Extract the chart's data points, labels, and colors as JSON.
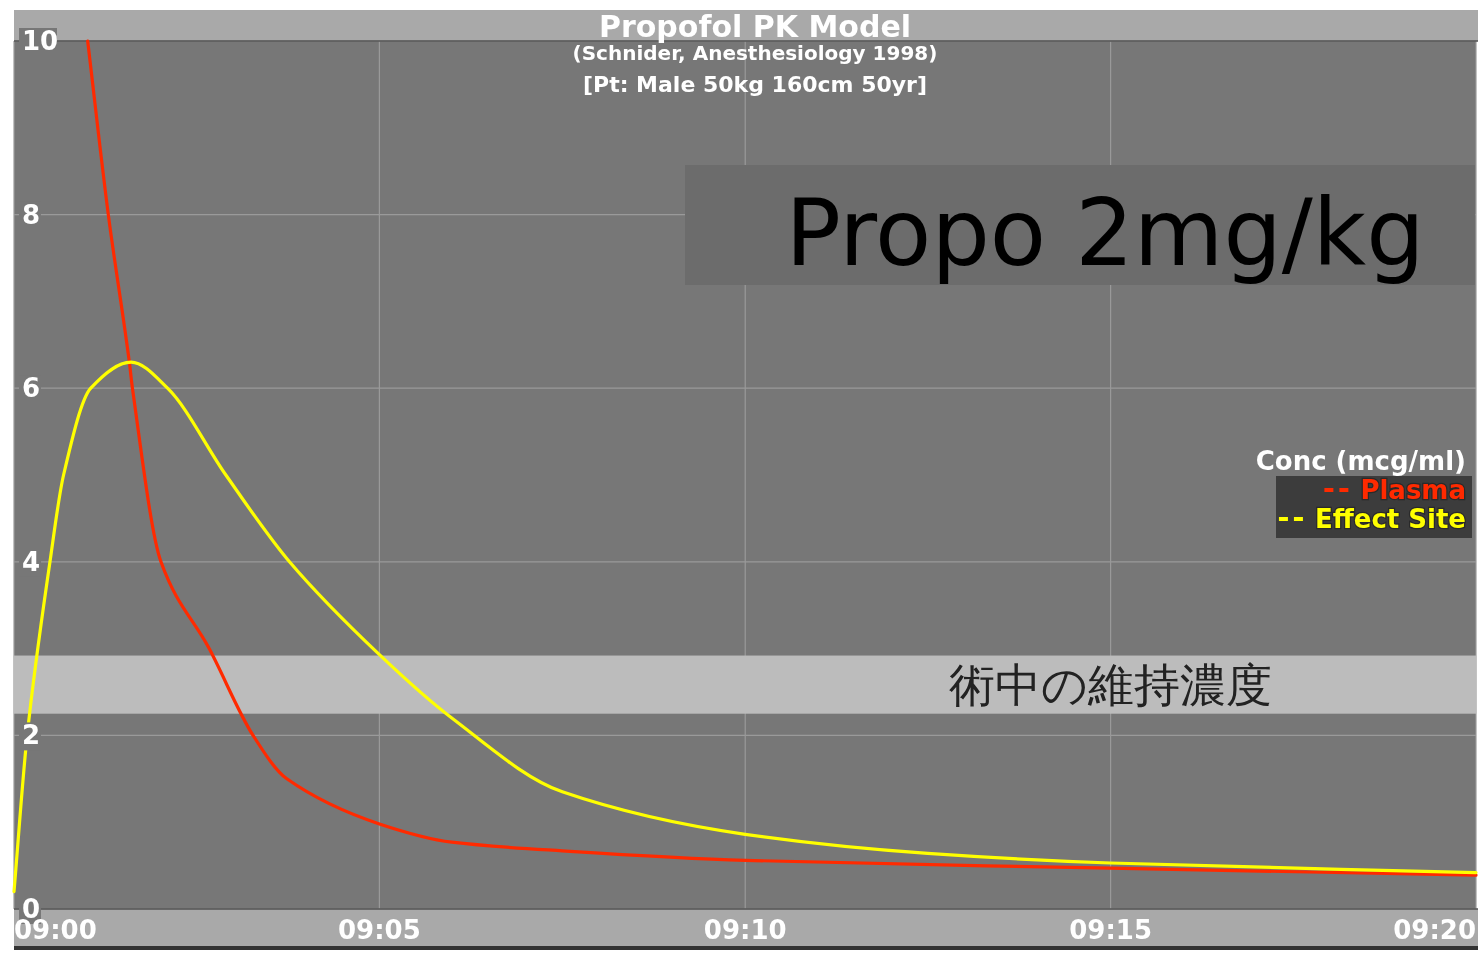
{
  "chart_data": {
    "type": "line",
    "title": "Propofol PK Model",
    "subtitle": "(Schnider, Anesthesiology 1998)",
    "annotations": [
      "[Pt: Male 50kg 160cm 50yr]",
      "Propo 2mg/kg"
    ],
    "legend_title": "Conc (mcg/ml)",
    "legend": "right",
    "grid": true,
    "line_style": "solid",
    "xlim": [
      9,
      9.3333
    ],
    "xticks": [
      {
        "value": 9,
        "label": "09:00"
      },
      {
        "value": 9.0833,
        "label": "09:05"
      },
      {
        "value": 9.1667,
        "label": "09:10"
      },
      {
        "value": 9.25,
        "label": "09:15"
      },
      {
        "value": 9.3333,
        "label": "09:20"
      }
    ],
    "ylim": [
      0,
      10
    ],
    "yticks": [
      0,
      2,
      4,
      6,
      8,
      10
    ],
    "bands": [
      {
        "axis": "y",
        "from": 2.25,
        "to": 2.92,
        "label": "術中の維持濃度",
        "color": "#bcbcbc"
      }
    ],
    "series": [
      {
        "name": "Plasma",
        "color": "#ff2a00",
        "x": [
          9.0168,
          9.0215,
          9.0263,
          9.027,
          9.0335,
          9.0445,
          9.0545,
          9.0622,
          9.0833,
          9.0998,
          9.125,
          9.1667,
          9.25,
          9.3333
        ],
        "values": [
          10,
          8,
          6.3,
          6,
          4,
          3,
          2,
          1.5,
          0.98,
          0.77,
          0.67,
          0.56,
          0.47,
          0.39
        ]
      },
      {
        "name": "Effect Site",
        "color": "#ffff00",
        "x": [
          9,
          9.003,
          9.0082,
          9.0113,
          9.0175,
          9.0267,
          9.035,
          9.0483,
          9.0628,
          9.0833,
          9.0998,
          9.125,
          9.1667,
          9.2083,
          9.25,
          9.3333
        ],
        "values": [
          0.2,
          2,
          4,
          5,
          6,
          6.3,
          6,
          5,
          4,
          2.93,
          2.2,
          1.35,
          0.86,
          0.64,
          0.53,
          0.42
        ]
      }
    ]
  }
}
